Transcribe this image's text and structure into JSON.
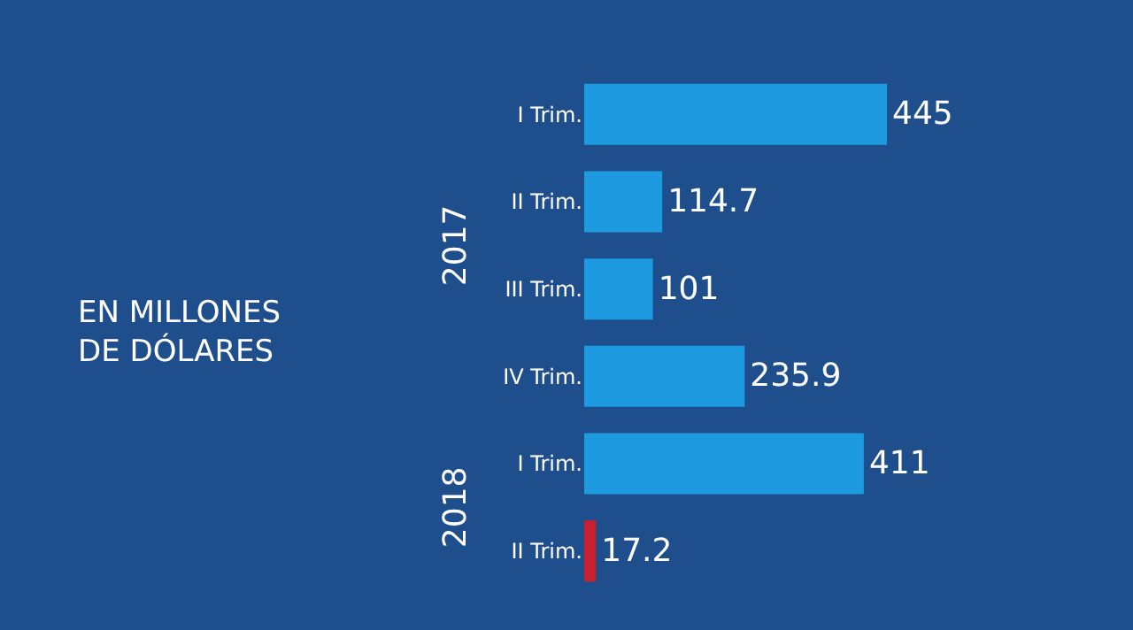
{
  "chart_data": {
    "type": "bar",
    "orientation": "horizontal",
    "categories": [
      "I Trim.",
      "II Trim.",
      "III Trim.",
      "IV Trim.",
      "I Trim.",
      "II Trim."
    ],
    "values": [
      445,
      114.7,
      101,
      235.9,
      411,
      17.2
    ],
    "colors": [
      "#1e9be0",
      "#1e9be0",
      "#1e9be0",
      "#1e9be0",
      "#1e9be0",
      "#c8202f"
    ],
    "data_labels": true,
    "legend": false,
    "annotations": [
      "EN MILLONES DE DÓLARES",
      "2017",
      "2018"
    ]
  }
}
